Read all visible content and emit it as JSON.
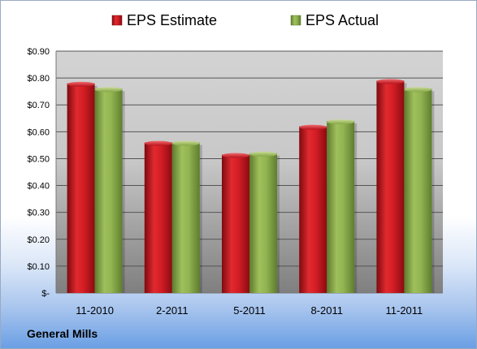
{
  "chart_data": {
    "type": "bar",
    "categories": [
      "11-2010",
      "2-2011",
      "5-2011",
      "8-2011",
      "11-2011"
    ],
    "series": [
      {
        "name": "EPS Estimate",
        "values": [
          0.78,
          0.56,
          0.515,
          0.62,
          0.79
        ],
        "color": "#c8141e"
      },
      {
        "name": "EPS Actual",
        "values": [
          0.76,
          0.56,
          0.52,
          0.64,
          0.76
        ],
        "color": "#8bab4a"
      }
    ],
    "yticks": [
      "$-",
      "$0.10",
      "$0.20",
      "$0.30",
      "$0.40",
      "$0.50",
      "$0.60",
      "$0.70",
      "$0.80",
      "$0.90"
    ],
    "ylim": [
      0,
      0.9
    ],
    "grid": true,
    "legend_position": "top"
  },
  "footer": {
    "company": "General Mills"
  }
}
